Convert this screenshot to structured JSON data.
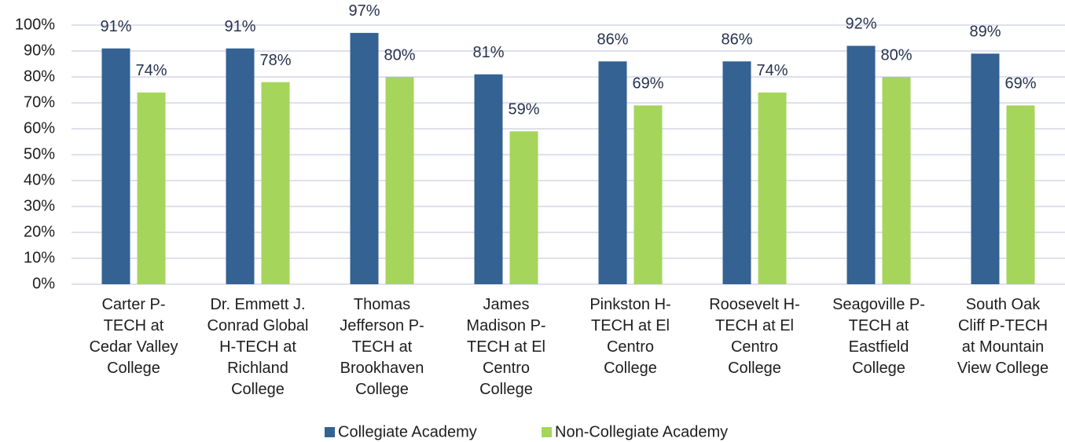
{
  "chart_data": {
    "type": "bar",
    "categories": [
      "Carter P-\nTECH at\nCedar Valley\nCollege",
      "Dr. Emmett J.\nConrad Global\nH-TECH at\nRichland\nCollege",
      "Thomas\nJefferson P-\nTECH at\nBrookhaven\nCollege",
      "James\nMadison P-\nTECH at El\nCentro\nCollege",
      "Pinkston H-\nTECH at El\nCentro\nCollege",
      "Roosevelt H-\nTECH at El\nCentro\nCollege",
      "Seagoville P-\nTECH at\nEastfield\nCollege",
      "South Oak\nCliff P-TECH\nat Mountain\nView College"
    ],
    "series": [
      {
        "name": "Collegiate Academy",
        "color": "#336293",
        "values": [
          91,
          91,
          97,
          81,
          86,
          86,
          92,
          89
        ],
        "value_labels": [
          "91%",
          "91%",
          "97%",
          "81%",
          "86%",
          "86%",
          "92%",
          "89%"
        ]
      },
      {
        "name": "Non-Collegiate Academy",
        "color": "#a5d55b",
        "values": [
          74,
          78,
          80,
          59,
          69,
          74,
          80,
          69
        ],
        "value_labels": [
          "74%",
          "78%",
          "80%",
          "59%",
          "69%",
          "74%",
          "80%",
          "69%"
        ]
      }
    ],
    "ylim": [
      0,
      100
    ],
    "yticks": [
      {
        "value": 0,
        "label": "0%"
      },
      {
        "value": 10,
        "label": "10%"
      },
      {
        "value": 20,
        "label": "20%"
      },
      {
        "value": 30,
        "label": "30%"
      },
      {
        "value": 40,
        "label": "40%"
      },
      {
        "value": 50,
        "label": "50%"
      },
      {
        "value": 60,
        "label": "60%"
      },
      {
        "value": 70,
        "label": "70%"
      },
      {
        "value": 80,
        "label": "80%"
      },
      {
        "value": 90,
        "label": "90%"
      },
      {
        "value": 100,
        "label": "100%"
      }
    ],
    "grid": true,
    "legend": "bottom"
  }
}
